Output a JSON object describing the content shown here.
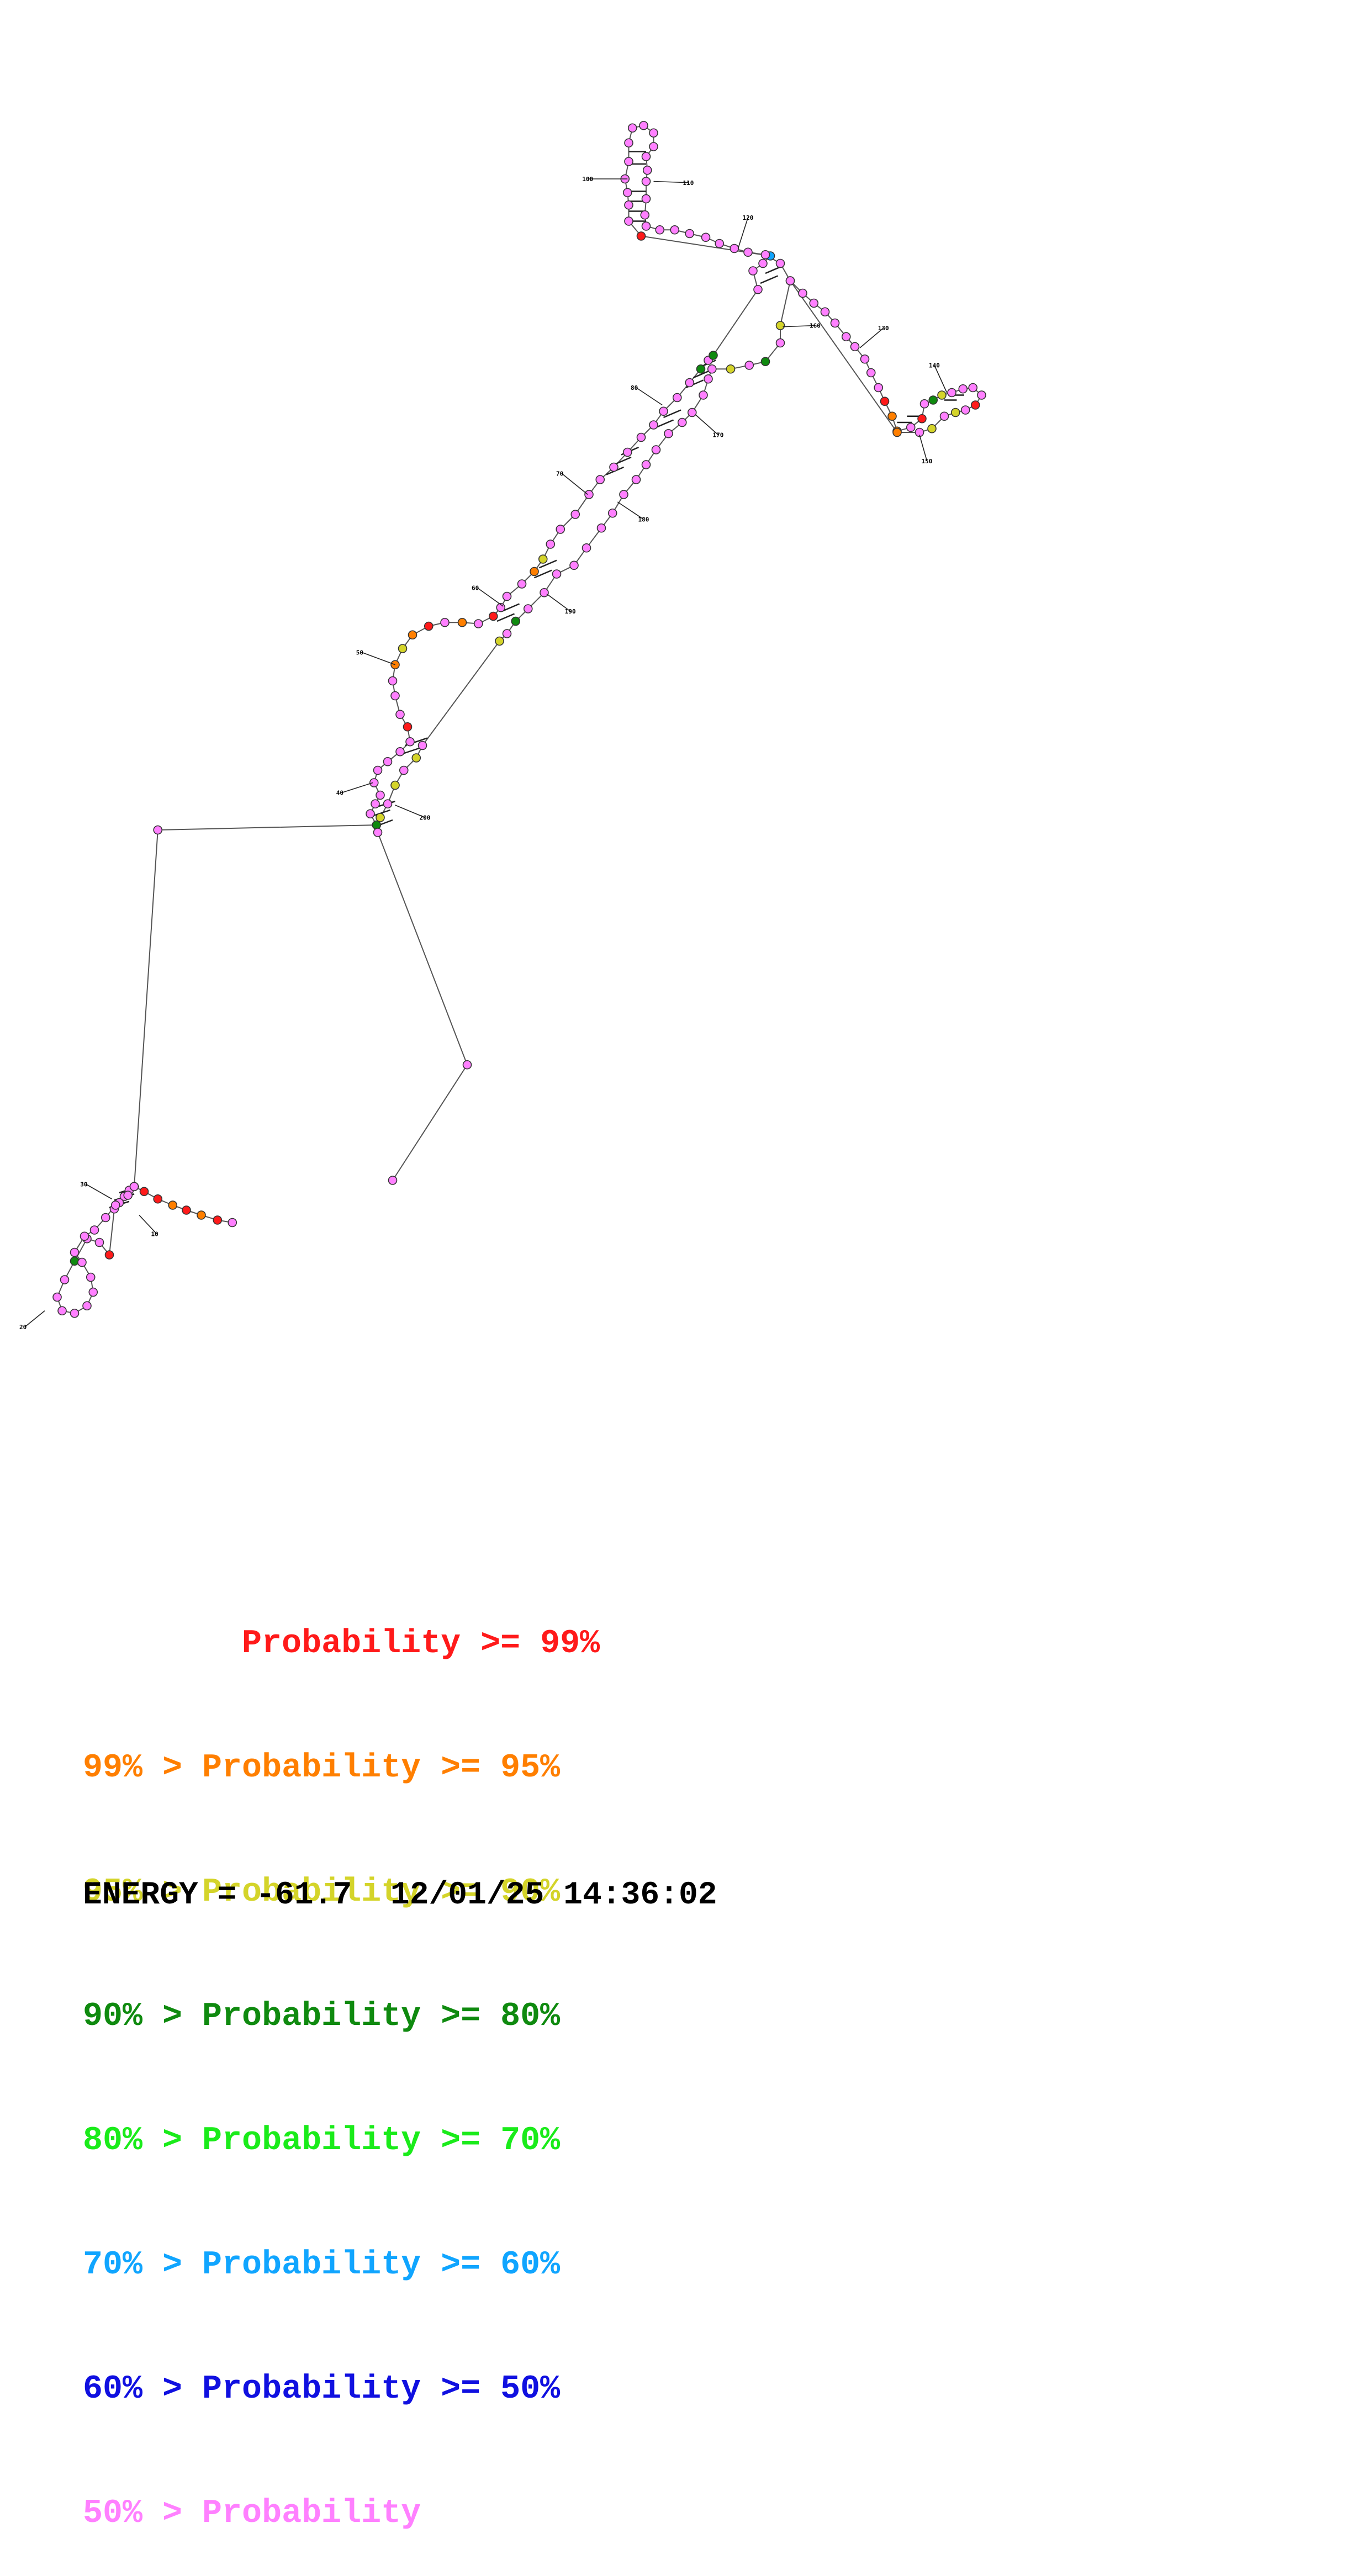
{
  "colors": {
    "p99": "#ff1a1a",
    "p95": "#ff7f00",
    "p90": "#d4d42a",
    "p80": "#0f8a0f",
    "p70": "#1aeb1a",
    "p60": "#10a5ff",
    "p50": "#1010e0",
    "plt50": "#ff80ff"
  },
  "diagram": {
    "nucleotide_labels": [
      "10",
      "20",
      "30",
      "40",
      "50",
      "60",
      "70",
      "80",
      "100",
      "110",
      "120",
      "130",
      "140",
      "150",
      "160",
      "170",
      "180",
      "190",
      "200"
    ]
  },
  "legend": [
    {
      "prefix": "        ",
      "main": "Probability >= 99%",
      "color_key": "p99"
    },
    {
      "prefix": "99% > ",
      "main": "Probability >= 95%",
      "color_key": "p95"
    },
    {
      "prefix": "95% > ",
      "main": "Probability >= 90%",
      "color_key": "p90"
    },
    {
      "prefix": "90% > ",
      "main": "Probability >= 80%",
      "color_key": "p80"
    },
    {
      "prefix": "80% > ",
      "main": "Probability >= 70%",
      "color_key": "p70"
    },
    {
      "prefix": "70% > ",
      "main": "Probability >= 60%",
      "color_key": "p60"
    },
    {
      "prefix": "60% > ",
      "main": "Probability >= 50%",
      "color_key": "p50"
    },
    {
      "prefix": "50% > ",
      "main": "Probability",
      "color_key": "plt50"
    }
  ],
  "footer": {
    "energy": "ENERGY = -61.7  12/01/25 14:36:02"
  }
}
